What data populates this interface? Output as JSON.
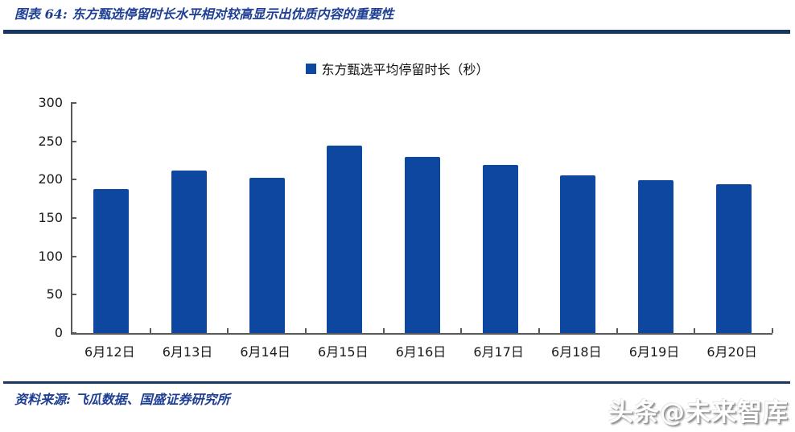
{
  "header": {
    "title": "图表 64:  东方甄选停留时长水平相对较高显示出优质内容的重要性"
  },
  "footer": {
    "source": "资料来源:  飞瓜数据、国盛证券研究所"
  },
  "watermark": {
    "text": "头条@未来智库"
  },
  "colors": {
    "bar": "#0D47A0",
    "title_text": "#1F3F94",
    "rule": "#17375E",
    "axis": "#595959",
    "tick_label": "#1a1a1a"
  },
  "chart_data": {
    "type": "bar",
    "title": "图表 64: 东方甄选停留时长水平相对较高显示出优质内容的重要性",
    "legend": "东方甄选平均停留时长（秒）",
    "legend_position": "top-center",
    "categories": [
      "6月12日",
      "6月13日",
      "6月14日",
      "6月15日",
      "6月16日",
      "6月17日",
      "6月18日",
      "6月19日",
      "6月20日"
    ],
    "values": [
      188,
      212,
      202,
      244,
      230,
      219,
      206,
      199,
      194
    ],
    "xlabel": "",
    "ylabel": "",
    "ylim": [
      0,
      300
    ],
    "yticks": [
      0,
      50,
      100,
      150,
      200,
      250,
      300
    ],
    "grid": false,
    "bar_color": "#0D47A0"
  }
}
